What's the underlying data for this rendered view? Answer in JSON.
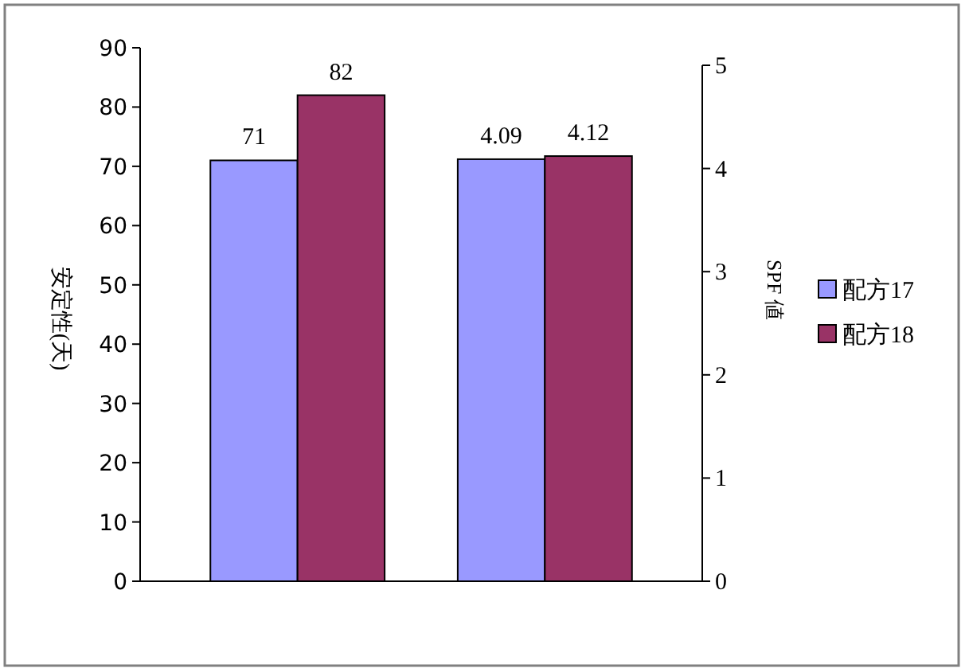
{
  "chart_data": {
    "type": "bar",
    "ylabel": "安定性(天)",
    "y2label": "SPF 値",
    "categories": [
      null,
      null
    ],
    "series": [
      {
        "name": "配方17",
        "color": "#9999ff",
        "values": [
          71,
          null
        ]
      },
      {
        "name": "配方18",
        "color": "#993366",
        "values": [
          82,
          null
        ]
      },
      {
        "color": "#9999ff",
        "values": [
          null,
          4.09
        ],
        "axis": "y2"
      },
      {
        "color": "#993366",
        "values": [
          null,
          4.12
        ],
        "axis": "y2"
      }
    ],
    "ylim": [
      0,
      90
    ],
    "yticks": [
      0,
      10,
      20,
      30,
      40,
      50,
      60,
      70,
      80,
      90
    ],
    "y2lim": [
      0,
      5
    ],
    "y2ticks": [
      0,
      1,
      2,
      3,
      4,
      5
    ],
    "data_labels": true,
    "legend": "right",
    "grid": false
  }
}
